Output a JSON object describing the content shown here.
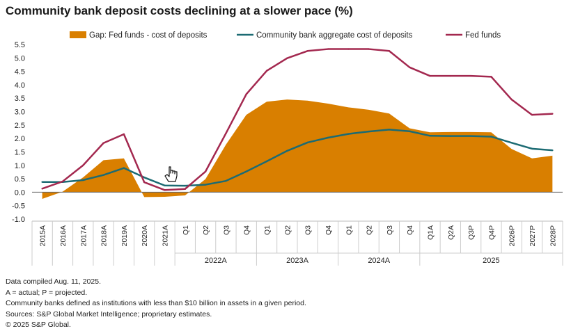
{
  "title": "Community bank deposit costs declining at a slower pace (%)",
  "notes": [
    "Data compiled Aug. 11, 2025.",
    "A = actual; P = projected.",
    "Community banks defined as institutions with less than $10 billion in assets in a given period.",
    "Sources: S&P Global Market Intelligence; proprietary estimates.",
    "© 2025 S&P Global."
  ],
  "chart_data": {
    "type": "line",
    "legend": {
      "position": "top",
      "items": [
        {
          "name": "Gap: Fed funds - cost of deposits",
          "kind": "area",
          "color": "#D97F00"
        },
        {
          "name": "Community bank aggregate cost of deposits",
          "kind": "line",
          "color": "#1C6B73"
        },
        {
          "name": "Fed funds",
          "kind": "line",
          "color": "#A3284F"
        }
      ]
    },
    "categories": [
      "2015A",
      "2016A",
      "2017A",
      "2018A",
      "2019A",
      "2020A",
      "2021A",
      "Q1",
      "Q2",
      "Q3",
      "Q4",
      "Q1",
      "Q2",
      "Q3",
      "Q4",
      "Q1",
      "Q2",
      "Q3",
      "Q4",
      "Q1A",
      "Q2A",
      "Q3P",
      "Q4P",
      "2026P",
      "2027P",
      "2028P"
    ],
    "groups": [
      {
        "label": "2022A",
        "start": 7,
        "end": 10
      },
      {
        "label": "2023A",
        "start": 11,
        "end": 14
      },
      {
        "label": "2024A",
        "start": 15,
        "end": 18
      },
      {
        "label": "2025",
        "start": 19,
        "end": 25
      }
    ],
    "series": [
      {
        "name": "Fed funds",
        "values": [
          0.13,
          0.4,
          1.0,
          1.83,
          2.16,
          0.37,
          0.08,
          0.12,
          0.77,
          2.19,
          3.65,
          4.52,
          4.99,
          5.26,
          5.33,
          5.33,
          5.33,
          5.26,
          4.65,
          4.33,
          4.33,
          4.33,
          4.3,
          3.45,
          2.88,
          2.92
        ]
      },
      {
        "name": "Community bank aggregate cost of deposits",
        "values": [
          0.38,
          0.38,
          0.45,
          0.64,
          0.9,
          0.55,
          0.25,
          0.24,
          0.28,
          0.42,
          0.77,
          1.15,
          1.54,
          1.85,
          2.03,
          2.17,
          2.26,
          2.33,
          2.27,
          2.1,
          2.09,
          2.09,
          2.07,
          1.84,
          1.62,
          1.56
        ]
      },
      {
        "name": "Gap: Fed funds - cost of deposits",
        "values": [
          -0.25,
          0.02,
          0.55,
          1.19,
          1.26,
          -0.18,
          -0.17,
          -0.12,
          0.49,
          1.77,
          2.88,
          3.37,
          3.45,
          3.41,
          3.3,
          3.16,
          3.07,
          2.93,
          2.38,
          2.23,
          2.24,
          2.24,
          2.23,
          1.61,
          1.26,
          1.36
        ]
      }
    ],
    "yticks": [
      "5.5",
      "5.0",
      "4.5",
      "4.0",
      "3.5",
      "3.0",
      "2.5",
      "2.0",
      "1.5",
      "1.0",
      "0.5",
      "0.0",
      "-0.5",
      "-1.0"
    ],
    "ylim": [
      -1.0,
      5.5
    ],
    "xlabel": "",
    "ylabel": "",
    "grid": false
  }
}
